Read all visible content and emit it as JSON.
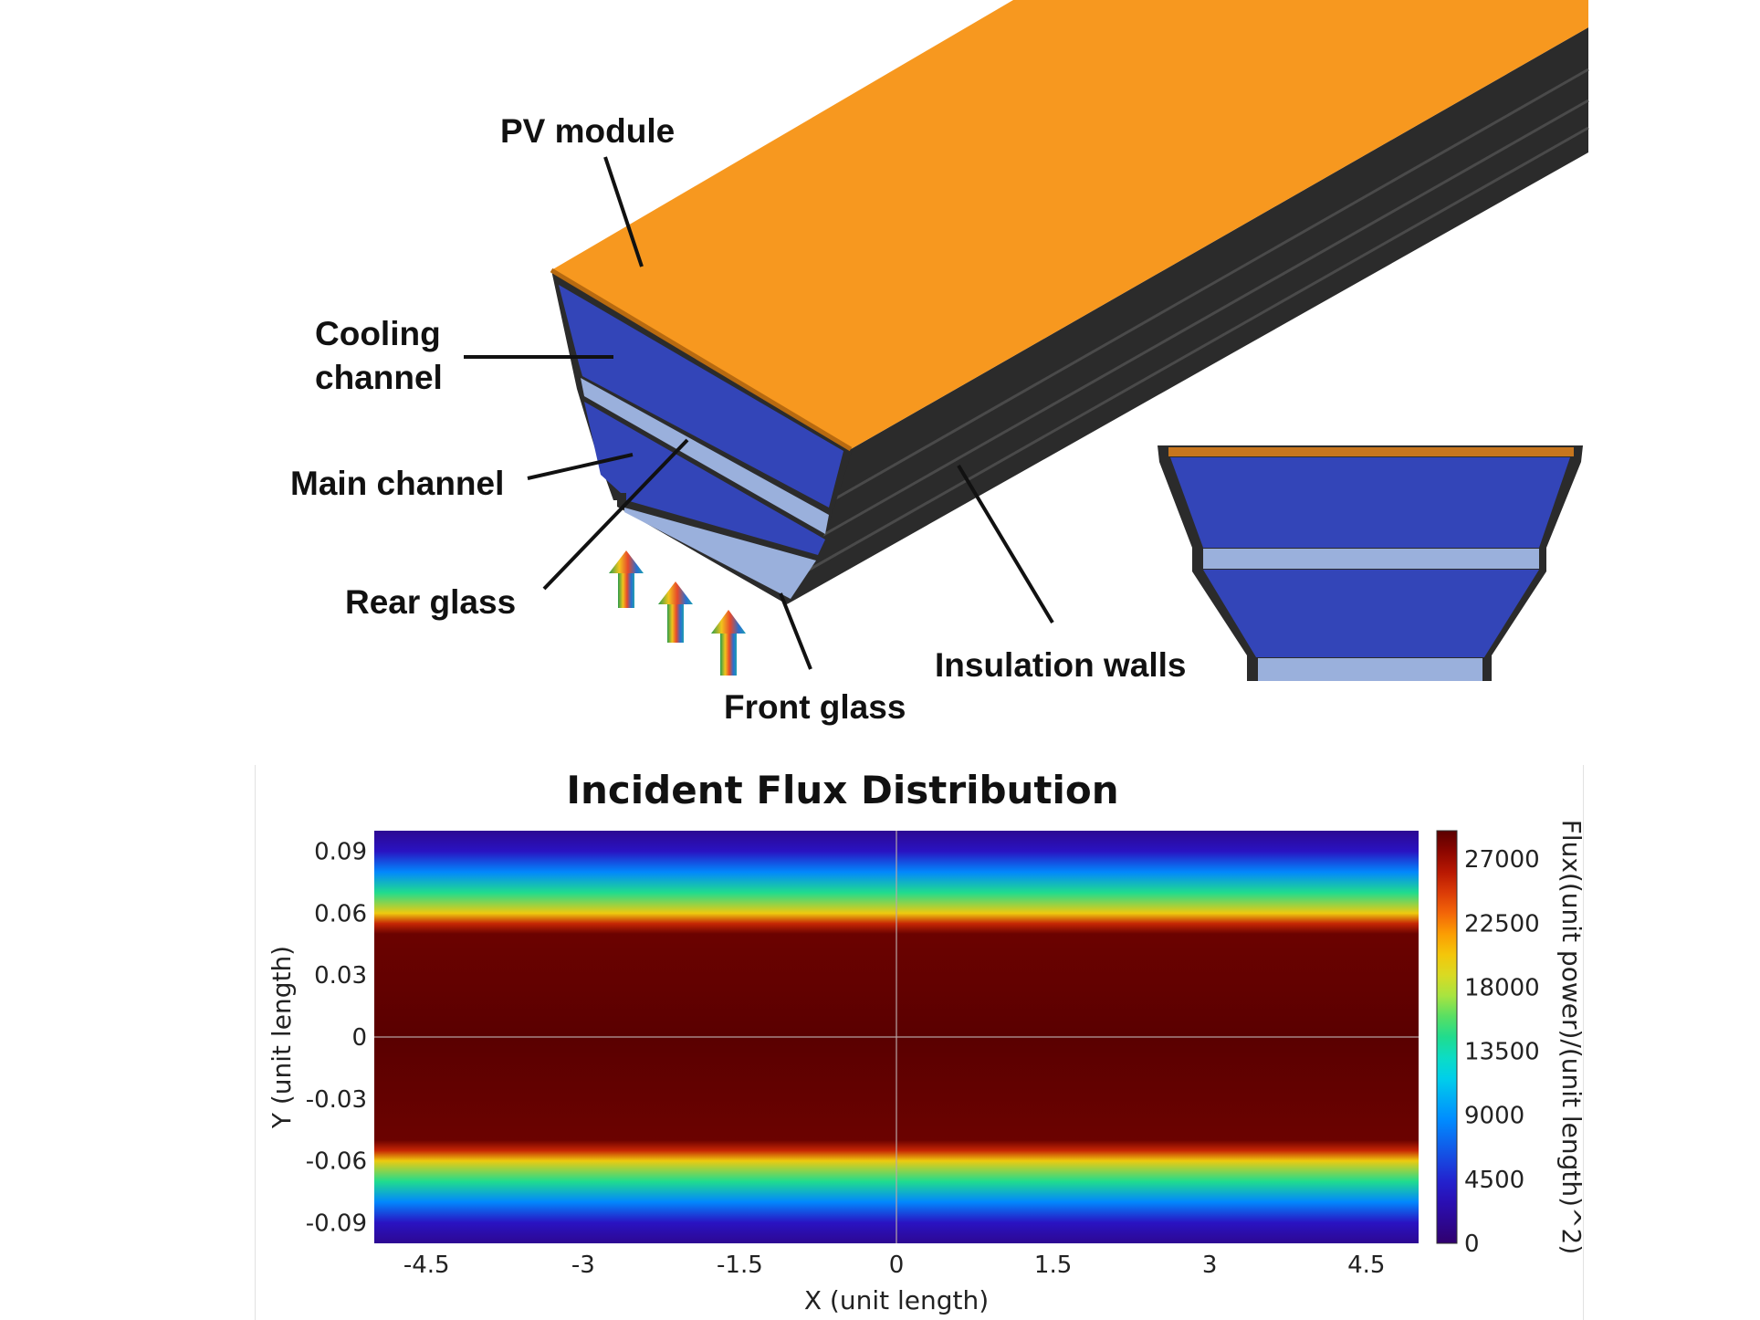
{
  "diagram": {
    "labels": {
      "pv_module": "PV module",
      "cooling_channel_1": "Cooling",
      "cooling_channel_2": "channel",
      "main_channel": "Main channel",
      "rear_glass": "Rear glass",
      "front_glass": "Front glass",
      "insulation_walls": "Insulation walls"
    },
    "colors": {
      "pv_module": "#f7981f",
      "channel": "#3345b8",
      "glass": "#9ab0dc",
      "insulation": "#2b2b2b"
    }
  },
  "chart_data": {
    "type": "heatmap",
    "title": "Incident Flux Distribution",
    "xlabel": "X (unit length)",
    "ylabel": "Y (unit length)",
    "colorbar_label": "Flux((unit power)/(unit length)^2)",
    "xlim": [
      -5,
      5
    ],
    "ylim": [
      -0.1,
      0.1
    ],
    "x_ticks": [
      "-4.5",
      "-3",
      "-1.5",
      "0",
      "1.5",
      "3",
      "4.5"
    ],
    "y_ticks": [
      "0.09",
      "0.06",
      "0.03",
      "0",
      "-0.03",
      "-0.06",
      "-0.09"
    ],
    "colorbar_ticks": [
      "27000",
      "22500",
      "18000",
      "13500",
      "9000",
      "4500",
      "0"
    ],
    "colorbar_range": [
      0,
      29000
    ],
    "profile_y": [
      0.1,
      0.09,
      0.08,
      0.07,
      0.06,
      0.055,
      0.05,
      0.0,
      -0.05,
      -0.055,
      -0.06,
      -0.07,
      -0.08,
      -0.09,
      -0.1
    ],
    "profile_flux": [
      1500,
      3500,
      8500,
      14500,
      20000,
      25500,
      28500,
      29000,
      28500,
      25500,
      20000,
      14500,
      8500,
      3500,
      1500
    ]
  }
}
